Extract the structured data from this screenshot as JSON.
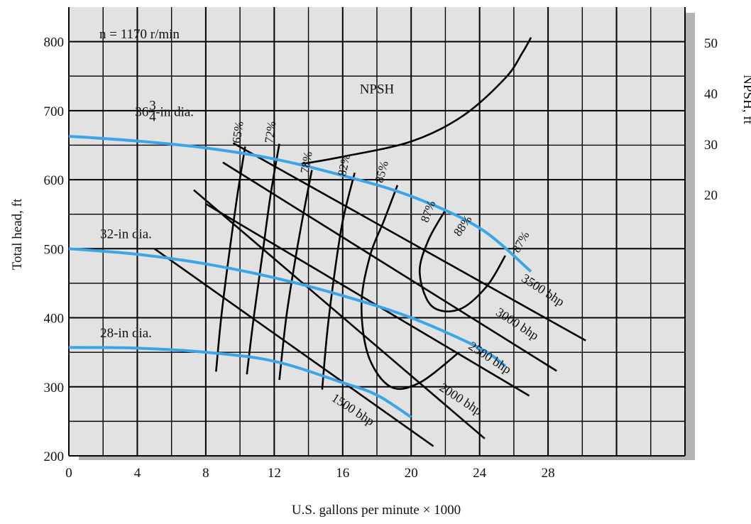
{
  "chart_data": {
    "type": "line",
    "title": "",
    "annotation": "n = 1170 r/min",
    "xlabel": "U.S. gallons per minute × 1000",
    "ylabel": "Total head, ft",
    "y2label": "NPSH, ft",
    "xlim": [
      0,
      36
    ],
    "ylim": [
      200,
      850
    ],
    "y2lim": [
      -31.5,
      57
    ],
    "x_ticks": [
      0,
      4,
      8,
      12,
      16,
      20,
      24,
      28
    ],
    "y_ticks": [
      200,
      300,
      400,
      500,
      600,
      700,
      800
    ],
    "y2_ticks": [
      20,
      30,
      40,
      50
    ],
    "grid": true,
    "colors": {
      "impeller": "#3aa6e8",
      "lines": "#000000",
      "plot_bg": "#e2e2e2",
      "shadow": "#b4b4b4"
    },
    "impeller_curves": [
      {
        "name": "36¾-in dia.",
        "label_main": "36",
        "label_num": "3",
        "label_den": "4",
        "label_tail": "-in dia.",
        "label_at": [
          2,
          692
        ],
        "points": [
          [
            0,
            663
          ],
          [
            4,
            656
          ],
          [
            8,
            646
          ],
          [
            12,
            630
          ],
          [
            16,
            606
          ],
          [
            20,
            576
          ],
          [
            24,
            530
          ],
          [
            27,
            467
          ]
        ]
      },
      {
        "name": "32-in dia.",
        "label_at": [
          1,
          515
        ],
        "points": [
          [
            0,
            500
          ],
          [
            4,
            492
          ],
          [
            8,
            478
          ],
          [
            12,
            458
          ],
          [
            16,
            432
          ],
          [
            20,
            400
          ],
          [
            24,
            356
          ],
          [
            25.5,
            330
          ]
        ]
      },
      {
        "name": "28-in dia.",
        "label_at": [
          1,
          372
        ],
        "points": [
          [
            0,
            357
          ],
          [
            4,
            356
          ],
          [
            8,
            350
          ],
          [
            12,
            337
          ],
          [
            16,
            306
          ],
          [
            18,
            288
          ],
          [
            20,
            256
          ]
        ]
      }
    ],
    "npsh_curve": {
      "name": "NPSH",
      "label_at": [
        18,
        40
      ],
      "points": [
        [
          13.5,
          26
        ],
        [
          16,
          27.5
        ],
        [
          20,
          30.5
        ],
        [
          23,
          35.5
        ],
        [
          25.5,
          43
        ],
        [
          26.5,
          48
        ],
        [
          27,
          51
        ]
      ]
    },
    "efficiency_curves": [
      {
        "label": "65%",
        "label_at": [
          10.1,
          668
        ],
        "label_angle": -82,
        "points": [
          [
            8.6,
            322
          ],
          [
            8.9,
            400
          ],
          [
            9.3,
            480
          ],
          [
            9.8,
            570
          ],
          [
            10.3,
            648
          ]
        ]
      },
      {
        "label": "72%",
        "label_at": [
          12.0,
          668
        ],
        "label_angle": -82,
        "points": [
          [
            10.4,
            318
          ],
          [
            10.8,
            400
          ],
          [
            11.3,
            490
          ],
          [
            11.8,
            580
          ],
          [
            12.3,
            652
          ]
        ]
      },
      {
        "label": "78%",
        "label_at": [
          14.1,
          624
        ],
        "label_angle": -80,
        "points": [
          [
            12.3,
            310
          ],
          [
            12.7,
            400
          ],
          [
            13.2,
            480
          ],
          [
            13.7,
            550
          ],
          [
            14.2,
            614
          ]
        ]
      },
      {
        "label": "82%",
        "label_at": [
          16.3,
          620
        ],
        "label_angle": -78,
        "points": [
          [
            14.8,
            296
          ],
          [
            15.1,
            380
          ],
          [
            15.5,
            460
          ],
          [
            16.0,
            540
          ],
          [
            16.7,
            610
          ]
        ]
      },
      {
        "label": "85%",
        "label_at": [
          18.5,
          610
        ],
        "label_angle": -75,
        "points": [
          [
            22.8,
            350
          ],
          [
            20.5,
            306
          ],
          [
            18.8,
            300
          ],
          [
            17.5,
            345
          ],
          [
            17.1,
            420
          ],
          [
            17.6,
            490
          ],
          [
            18.4,
            540
          ],
          [
            19.2,
            592
          ]
        ]
      },
      {
        "label": "87%",
        "label_at": [
          21.2,
          552
        ],
        "label_angle": -70,
        "points": [
          [
            25.5,
            490
          ],
          [
            24.4,
            445
          ],
          [
            22.8,
            412
          ],
          [
            21.2,
            417
          ],
          [
            20.5,
            465
          ],
          [
            21.0,
            512
          ],
          [
            22.0,
            556
          ]
        ]
      },
      {
        "label": "88%",
        "label_at": [
          23.2,
          530
        ],
        "label_angle": -55,
        "points": []
      },
      {
        "label": "87%",
        "label_at": [
          26.6,
          507
        ],
        "label_angle": -60,
        "points": []
      }
    ],
    "bhp_lines": [
      {
        "label": "1500 bhp",
        "points": [
          [
            5,
            500
          ],
          [
            21.3,
            214
          ]
        ],
        "label_at": [
          15.3,
          281
        ],
        "label_angle": 33
      },
      {
        "label": "2000 bhp",
        "points": [
          [
            7.3,
            585
          ],
          [
            24.3,
            225
          ]
        ],
        "label_at": [
          21.6,
          296
        ],
        "label_angle": 33
      },
      {
        "label": "2500 bhp",
        "points": [
          [
            8.0,
            565
          ],
          [
            26.9,
            287
          ]
        ],
        "label_at": [
          23.3,
          356
        ],
        "label_angle": 33
      },
      {
        "label": "3000 bhp",
        "points": [
          [
            9.0,
            625
          ],
          [
            28.5,
            323
          ]
        ],
        "label_at": [
          24.9,
          405
        ],
        "label_angle": 33
      },
      {
        "label": "3500 bhp",
        "points": [
          [
            9.6,
            653
          ],
          [
            30.2,
            367
          ]
        ],
        "label_at": [
          26.4,
          454
        ],
        "label_angle": 33
      }
    ]
  }
}
